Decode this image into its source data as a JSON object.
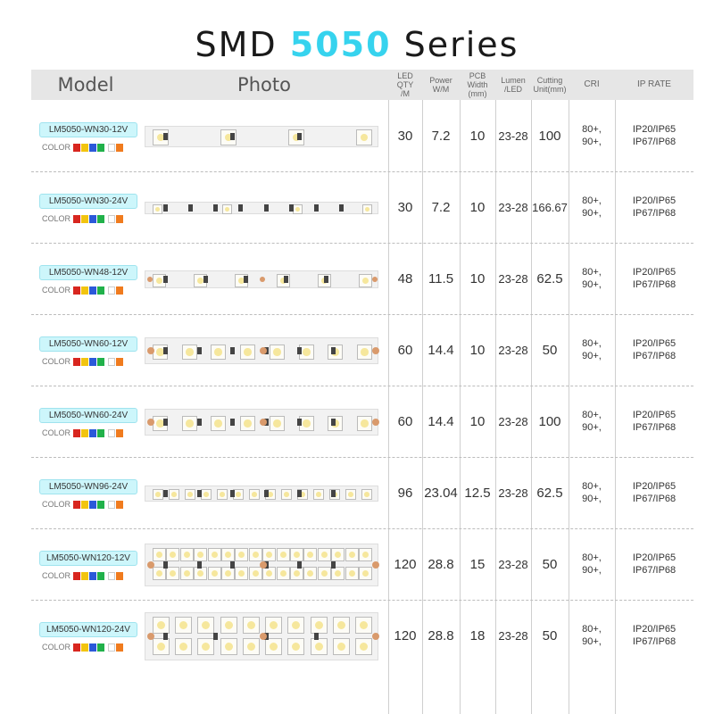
{
  "title": {
    "prefix": "SMD ",
    "highlight": "5050",
    "suffix": " Series"
  },
  "headers": {
    "model": "Model",
    "photo": "Photo",
    "qty": [
      "LED QTY",
      "/M"
    ],
    "power": [
      "Power",
      "W/M"
    ],
    "pcb": [
      "PCB Width",
      "(mm)"
    ],
    "lumen": [
      "Lumen",
      "/LED"
    ],
    "cutting": [
      "Cutting",
      "Unit(mm)"
    ],
    "cri": "CRI",
    "ip": "IP RATE"
  },
  "color_label": "COLOR",
  "color_swatches": [
    "#d8261f",
    "#f2c40f",
    "#2b59d9",
    "#21b14a",
    "#ffffff",
    "#f07b1e"
  ],
  "rows": [
    {
      "model": "LM5050-WN30-12V",
      "qty": "30",
      "power": "7.2",
      "pcb": "10",
      "lumen": "23-28",
      "cutting": "100",
      "cri": [
        "80+,",
        "90+,"
      ],
      "ip": [
        "IP20/IP65",
        "IP67/IP68"
      ],
      "pattern": "a"
    },
    {
      "model": "LM5050-WN30-24V",
      "qty": "30",
      "power": "7.2",
      "pcb": "10",
      "lumen": "23-28",
      "cutting": "166.67",
      "cri": [
        "80+,",
        "90+,"
      ],
      "ip": [
        "IP20/IP65",
        "IP67/IP68"
      ],
      "pattern": "b"
    },
    {
      "model": "LM5050-WN48-12V",
      "qty": "48",
      "power": "11.5",
      "pcb": "10",
      "lumen": "23-28",
      "cutting": "62.5",
      "cri": [
        "80+,",
        "90+,"
      ],
      "ip": [
        "IP20/IP65",
        "IP67/IP68"
      ],
      "pattern": "c"
    },
    {
      "model": "LM5050-WN60-12V",
      "qty": "60",
      "power": "14.4",
      "pcb": "10",
      "lumen": "23-28",
      "cutting": "50",
      "cri": [
        "80+,",
        "90+,"
      ],
      "ip": [
        "IP20/IP65",
        "IP67/IP68"
      ],
      "pattern": "d"
    },
    {
      "model": "LM5050-WN60-24V",
      "qty": "60",
      "power": "14.4",
      "pcb": "10",
      "lumen": "23-28",
      "cutting": "100",
      "cri": [
        "80+,",
        "90+,"
      ],
      "ip": [
        "IP20/IP65",
        "IP67/IP68"
      ],
      "pattern": "d"
    },
    {
      "model": "LM5050-WN96-24V",
      "qty": "96",
      "power": "23.04",
      "pcb": "12.5",
      "lumen": "23-28",
      "cutting": "62.5",
      "cri": [
        "80+,",
        "90+,"
      ],
      "ip": [
        "IP20/IP65",
        "IP67/IP68"
      ],
      "pattern": "e"
    },
    {
      "model": "LM5050-WN120-12V",
      "qty": "120",
      "power": "28.8",
      "pcb": "15",
      "lumen": "23-28",
      "cutting": "50",
      "cri": [
        "80+,",
        "90+,"
      ],
      "ip": [
        "IP20/IP65",
        "IP67/IP68"
      ],
      "pattern": "f"
    },
    {
      "model": "LM5050-WN120-24V",
      "qty": "120",
      "power": "28.8",
      "pcb": "18",
      "lumen": "23-28",
      "cutting": "50",
      "cri": [
        "80+,",
        "90+,"
      ],
      "ip": [
        "IP20/IP65",
        "IP67/IP68"
      ],
      "pattern": "g"
    }
  ]
}
